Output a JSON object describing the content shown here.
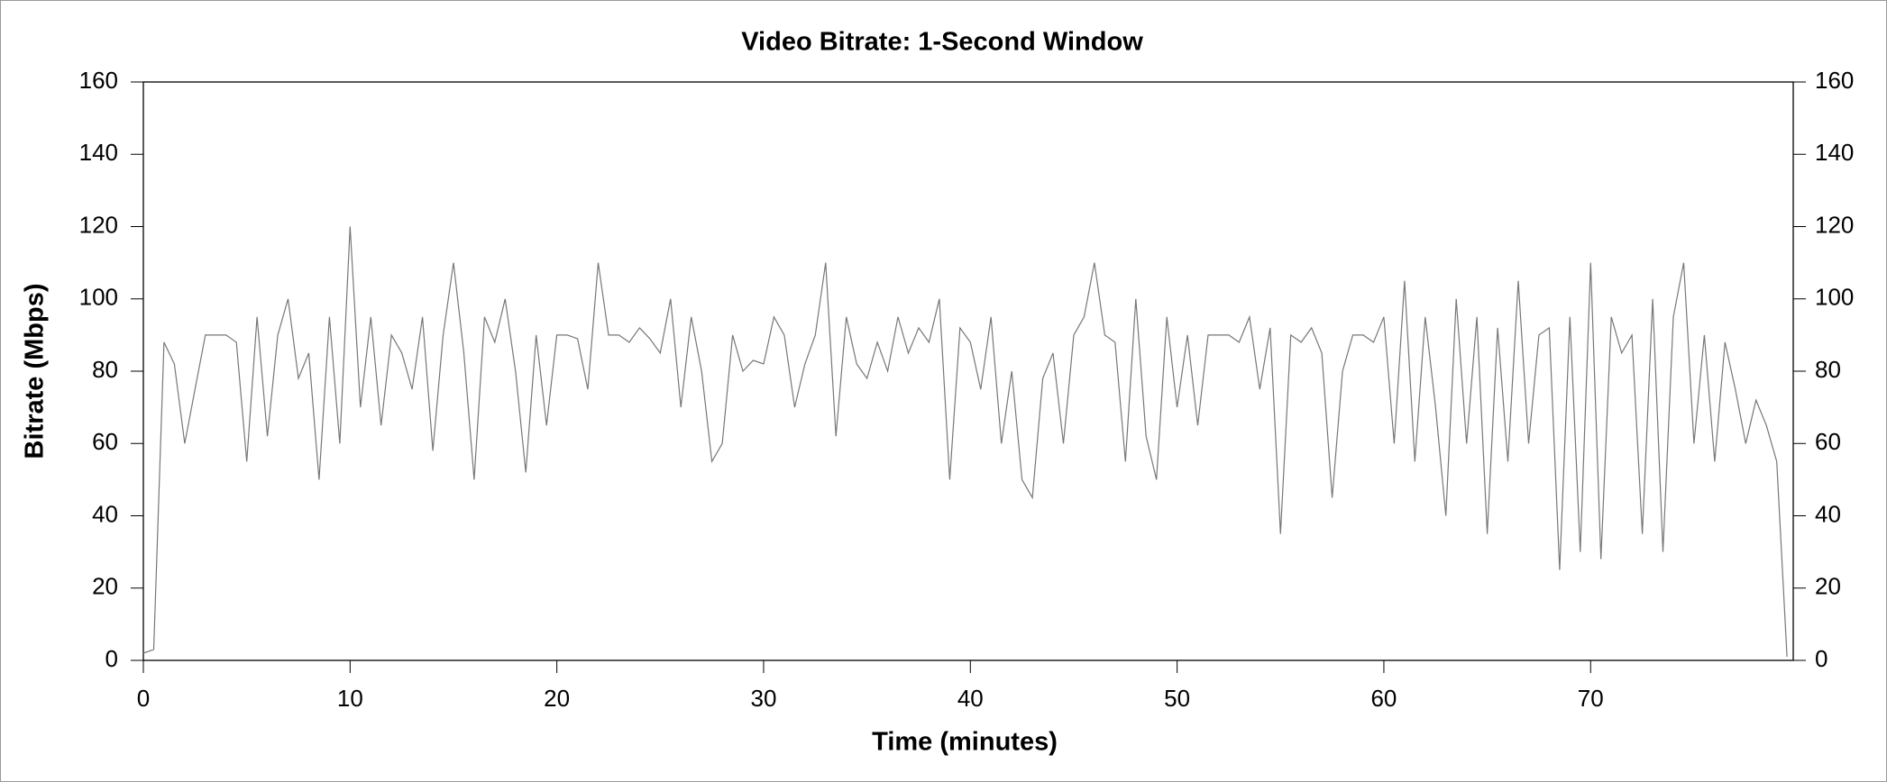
{
  "chart_data": {
    "type": "line",
    "title": "Video Bitrate: 1-Second Window",
    "x_label": "Time (minutes)",
    "y_label": "Bitrate (Mbps)",
    "xlim": [
      0,
      79.8
    ],
    "xticks": [
      0,
      10,
      20,
      30,
      40,
      50,
      60,
      70
    ],
    "ylim": [
      0,
      160
    ],
    "yticks": [
      0,
      20,
      40,
      60,
      80,
      100,
      120,
      140,
      160
    ],
    "y2lim": [
      0,
      160
    ],
    "y2ticks": [
      0,
      20,
      40,
      60,
      80,
      100,
      120,
      140,
      160
    ],
    "grid": false,
    "color": "#777777",
    "x": [
      0,
      0.5,
      1,
      1.5,
      2,
      2.5,
      3,
      3.5,
      4,
      4.5,
      5,
      5.5,
      6,
      6.5,
      7,
      7.5,
      8,
      8.5,
      9,
      9.5,
      10,
      10.5,
      11,
      11.5,
      12,
      12.5,
      13,
      13.5,
      14,
      14.5,
      15,
      15.5,
      16,
      16.5,
      17,
      17.5,
      18,
      18.5,
      19,
      19.5,
      20,
      20.5,
      21,
      21.5,
      22,
      22.5,
      23,
      23.5,
      24,
      24.5,
      25,
      25.5,
      26,
      26.5,
      27,
      27.5,
      28,
      28.5,
      29,
      29.5,
      30,
      30.5,
      31,
      31.5,
      32,
      32.5,
      33,
      33.5,
      34,
      34.5,
      35,
      35.5,
      36,
      36.5,
      37,
      37.5,
      38,
      38.5,
      39,
      39.5,
      40,
      40.5,
      41,
      41.5,
      42,
      42.5,
      43,
      43.5,
      44,
      44.5,
      45,
      45.5,
      46,
      46.5,
      47,
      47.5,
      48,
      48.5,
      49,
      49.5,
      50,
      50.5,
      51,
      51.5,
      52,
      52.5,
      53,
      53.5,
      54,
      54.5,
      55,
      55.5,
      56,
      56.5,
      57,
      57.5,
      58,
      58.5,
      59,
      59.5,
      60,
      60.5,
      61,
      61.5,
      62,
      62.5,
      63,
      63.5,
      64,
      64.5,
      65,
      65.5,
      66,
      66.5,
      67,
      67.5,
      68,
      68.5,
      69,
      69.5,
      70,
      70.5,
      71,
      71.5,
      72,
      72.5,
      73,
      73.5,
      74,
      74.5,
      75,
      75.5,
      76,
      76.5,
      77,
      77.5,
      78,
      78.5,
      79,
      79.5
    ],
    "values": [
      2,
      3,
      88,
      82,
      60,
      75,
      90,
      90,
      90,
      88,
      55,
      95,
      62,
      90,
      100,
      78,
      85,
      50,
      95,
      60,
      120,
      70,
      95,
      65,
      90,
      85,
      75,
      95,
      58,
      90,
      110,
      85,
      50,
      95,
      88,
      100,
      80,
      52,
      90,
      65,
      90,
      90,
      89,
      75,
      110,
      90,
      90,
      88,
      92,
      89,
      85,
      100,
      70,
      95,
      80,
      55,
      60,
      90,
      80,
      83,
      82,
      95,
      90,
      70,
      82,
      90,
      110,
      62,
      95,
      82,
      78,
      88,
      80,
      95,
      85,
      92,
      88,
      100,
      50,
      92,
      88,
      75,
      95,
      60,
      80,
      50,
      45,
      78,
      85,
      60,
      90,
      95,
      110,
      90,
      88,
      55,
      100,
      62,
      50,
      95,
      70,
      90,
      65,
      90,
      90,
      90,
      88,
      95,
      75,
      92,
      35,
      90,
      88,
      92,
      85,
      45,
      80,
      90,
      90,
      88,
      95,
      60,
      105,
      55,
      95,
      70,
      40,
      100,
      60,
      95,
      35,
      92,
      55,
      105,
      60,
      90,
      92,
      25,
      95,
      30,
      110,
      28,
      95,
      85,
      90,
      35,
      100,
      30,
      95,
      110,
      60,
      90,
      55,
      88,
      75,
      60,
      72,
      65,
      55,
      1
    ]
  }
}
